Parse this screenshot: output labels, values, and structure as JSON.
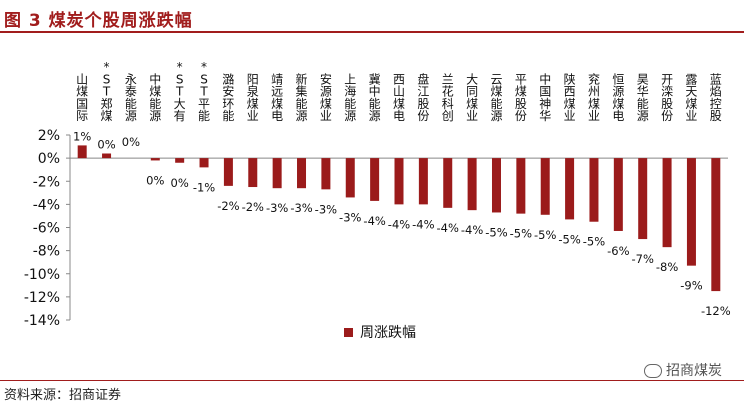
{
  "header": {
    "title": "图 3 煤炭个股周涨跌幅"
  },
  "footer": {
    "source": "资料来源：招商证券",
    "watermark": "招商煤炭"
  },
  "colors": {
    "bar": "#9b1b1b",
    "title": "#a11d1d",
    "axis": "#888888"
  },
  "chart_data": {
    "type": "bar",
    "categories": [
      "山煤国际",
      "*ST郑煤",
      "永泰能源",
      "中煤能源",
      "*ST大有",
      "*ST平能",
      "潞安环能",
      "阳泉煤业",
      "靖远煤电",
      "新集能源",
      "安源煤业",
      "上海能源",
      "冀中能源",
      "西山煤电",
      "盘江股份",
      "兰花科创",
      "大同煤业",
      "云煤能源",
      "平煤股份",
      "中国神华",
      "陕西煤业",
      "兖州煤业",
      "恒源煤电",
      "昊华能源",
      "开滦股份",
      "露天煤业",
      "蓝焰控股"
    ],
    "series": [
      {
        "name": "周涨跌幅",
        "values": [
          1.1,
          0.4,
          0.0,
          -0.2,
          -0.4,
          -0.8,
          -2.4,
          -2.5,
          -2.6,
          -2.6,
          -2.7,
          -3.4,
          -3.7,
          -4.0,
          -4.0,
          -4.3,
          -4.5,
          -4.7,
          -4.8,
          -4.9,
          -5.3,
          -5.5,
          -6.3,
          -7.0,
          -7.7,
          -9.3,
          -11.5
        ],
        "labels": [
          "1%",
          "0%",
          "0%",
          "0%",
          "0%",
          "-1%",
          "-2%",
          "-2%",
          "-3%",
          "-3%",
          "-3%",
          "-3%",
          "-4%",
          "-4%",
          "-4%",
          "-4%",
          "-4%",
          "-5%",
          "-5%",
          "-5%",
          "-5%",
          "-5%",
          "-6%",
          "-7%",
          "-8%",
          "-9%",
          "-12%"
        ]
      }
    ],
    "yticks": [
      "2%",
      "0%",
      "-2%",
      "-4%",
      "-6%",
      "-8%",
      "-10%",
      "-12%",
      "-14%"
    ],
    "ylim": [
      -14,
      2
    ],
    "legend": {
      "label": "周涨跌幅",
      "placement": "bottom-center"
    },
    "grid": false
  }
}
